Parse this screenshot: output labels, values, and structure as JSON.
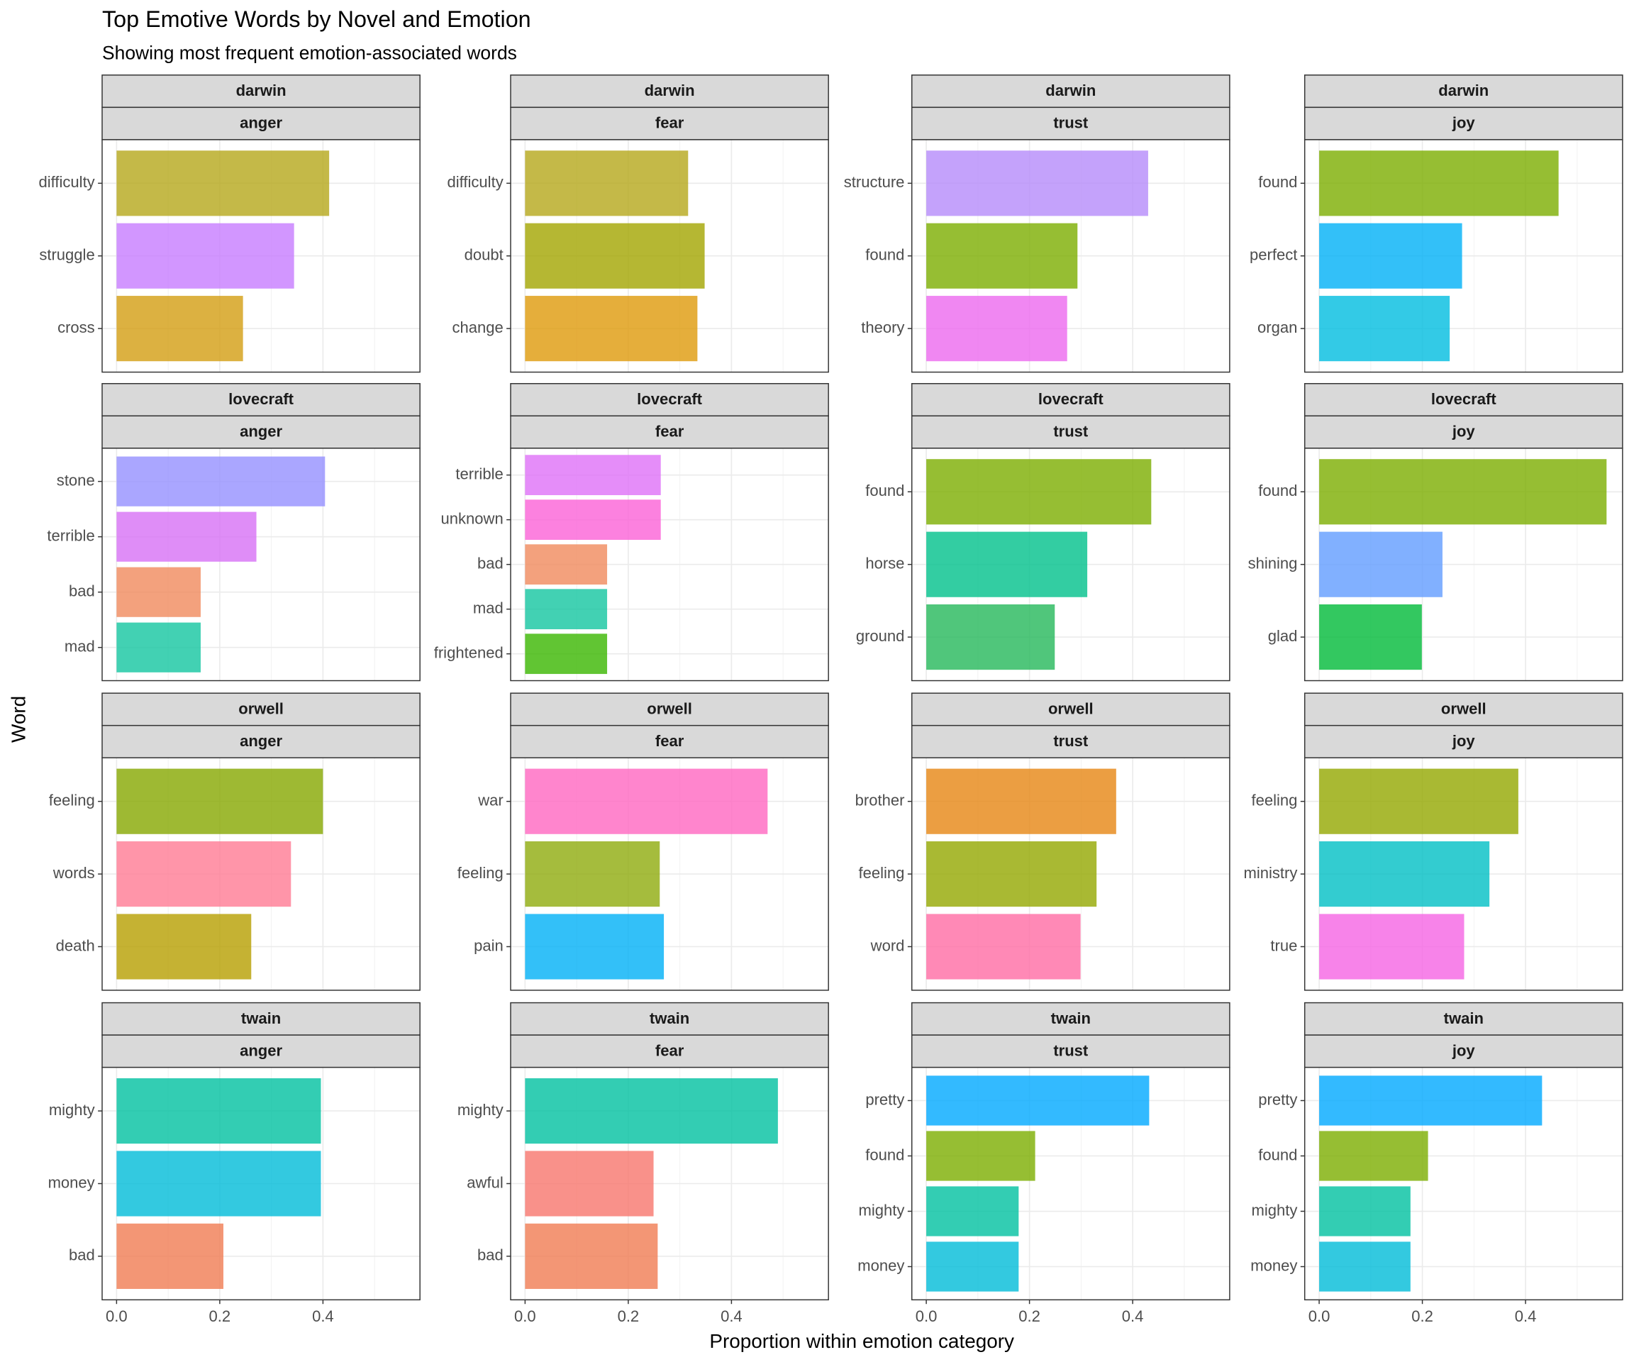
{
  "chart_data": {
    "type": "bar",
    "orientation": "horizontal",
    "title": "Top Emotive Words by Novel and Emotion",
    "subtitle": "Showing most frequent emotion-associated words",
    "x_label": "Proportion within emotion category",
    "y_label": "Word",
    "xlim": [
      -0.028,
      0.588
    ],
    "xticks": [
      {
        "value": 0,
        "label": "0.0"
      },
      {
        "value": 0.2,
        "label": "0.2"
      },
      {
        "value": 0.4,
        "label": "0.4"
      }
    ],
    "minor_xticks": [
      0.1,
      0.3,
      0.5
    ],
    "grid": true,
    "opacity": 0.8,
    "panels": [
      {
        "novel": "darwin",
        "emotion": "anger",
        "categories": [
          "difficulty",
          "struggle",
          "cross"
        ],
        "values": [
          0.412,
          0.344,
          0.245
        ],
        "colors": [
          "#b5a81a",
          "#c77cff",
          "#d39e12"
        ]
      },
      {
        "novel": "darwin",
        "emotion": "fear",
        "categories": [
          "difficulty",
          "doubt",
          "change"
        ],
        "values": [
          0.316,
          0.348,
          0.334
        ],
        "colors": [
          "#b5a81a",
          "#a3a500",
          "#de9a0a"
        ]
      },
      {
        "novel": "darwin",
        "emotion": "trust",
        "categories": [
          "structure",
          "found",
          "theory"
        ],
        "values": [
          0.43,
          0.293,
          0.273
        ],
        "colors": [
          "#b58bfa",
          "#7cae00",
          "#ec69ef"
        ]
      },
      {
        "novel": "darwin",
        "emotion": "joy",
        "categories": [
          "found",
          "perfect",
          "organ"
        ],
        "values": [
          0.464,
          0.277,
          0.253
        ],
        "colors": [
          "#7cae00",
          "#00b0f6",
          "#00bde0"
        ]
      },
      {
        "novel": "lovecraft",
        "emotion": "anger",
        "categories": [
          "stone",
          "terrible",
          "bad",
          "mad"
        ],
        "values": [
          0.404,
          0.271,
          0.163,
          0.163
        ],
        "colors": [
          "#9590ff",
          "#d771f5",
          "#f08a5c",
          "#13c6a0"
        ]
      },
      {
        "novel": "lovecraft",
        "emotion": "fear",
        "categories": [
          "terrible",
          "unknown",
          "bad",
          "mad",
          "frightened"
        ],
        "values": [
          0.263,
          0.263,
          0.159,
          0.159,
          0.159
        ],
        "colors": [
          "#df70f8",
          "#fb61d7",
          "#f08a5c",
          "#13c6a0",
          "#39b600"
        ]
      },
      {
        "novel": "lovecraft",
        "emotion": "trust",
        "categories": [
          "found",
          "horse",
          "ground"
        ],
        "values": [
          0.436,
          0.312,
          0.249
        ],
        "colors": [
          "#7cae00",
          "#00c08b",
          "#24b85a"
        ]
      },
      {
        "novel": "lovecraft",
        "emotion": "joy",
        "categories": [
          "found",
          "shining",
          "glad"
        ],
        "values": [
          0.557,
          0.239,
          0.199
        ],
        "colors": [
          "#7cae00",
          "#619cff",
          "#00ba38"
        ]
      },
      {
        "novel": "orwell",
        "emotion": "anger",
        "categories": [
          "feeling",
          "words",
          "death"
        ],
        "values": [
          0.4,
          0.338,
          0.261
        ],
        "colors": [
          "#86a800",
          "#ff7b93",
          "#b79f00"
        ]
      },
      {
        "novel": "orwell",
        "emotion": "fear",
        "categories": [
          "war",
          "feeling",
          "pain"
        ],
        "values": [
          0.47,
          0.261,
          0.269
        ],
        "colors": [
          "#ff66c0",
          "#8fab0c",
          "#00b0f6"
        ]
      },
      {
        "novel": "orwell",
        "emotion": "trust",
        "categories": [
          "brother",
          "feeling",
          "word"
        ],
        "values": [
          0.368,
          0.33,
          0.299
        ],
        "colors": [
          "#e68613",
          "#94a800",
          "#ff6ba4"
        ]
      },
      {
        "novel": "orwell",
        "emotion": "joy",
        "categories": [
          "feeling",
          "ministry",
          "true"
        ],
        "values": [
          0.386,
          0.33,
          0.281
        ],
        "colors": [
          "#94a800",
          "#00bfc4",
          "#f564e3"
        ]
      },
      {
        "novel": "twain",
        "emotion": "anger",
        "categories": [
          "mighty",
          "money",
          "bad"
        ],
        "values": [
          0.396,
          0.396,
          0.207
        ],
        "colors": [
          "#00c1a0",
          "#00bcd8",
          "#f07c52"
        ]
      },
      {
        "novel": "twain",
        "emotion": "fear",
        "categories": [
          "mighty",
          "awful",
          "bad"
        ],
        "values": [
          0.49,
          0.249,
          0.257
        ],
        "colors": [
          "#00c1a0",
          "#f8766d",
          "#f07c52"
        ]
      },
      {
        "novel": "twain",
        "emotion": "trust",
        "categories": [
          "pretty",
          "found",
          "mighty",
          "money"
        ],
        "values": [
          0.432,
          0.211,
          0.179,
          0.179
        ],
        "colors": [
          "#00a9ff",
          "#7cae00",
          "#00c1a0",
          "#00bcd8"
        ]
      },
      {
        "novel": "twain",
        "emotion": "joy",
        "categories": [
          "pretty",
          "found",
          "mighty",
          "money"
        ],
        "values": [
          0.432,
          0.211,
          0.177,
          0.177
        ],
        "colors": [
          "#00a9ff",
          "#7cae00",
          "#00c1a0",
          "#00bcd8"
        ]
      }
    ]
  }
}
